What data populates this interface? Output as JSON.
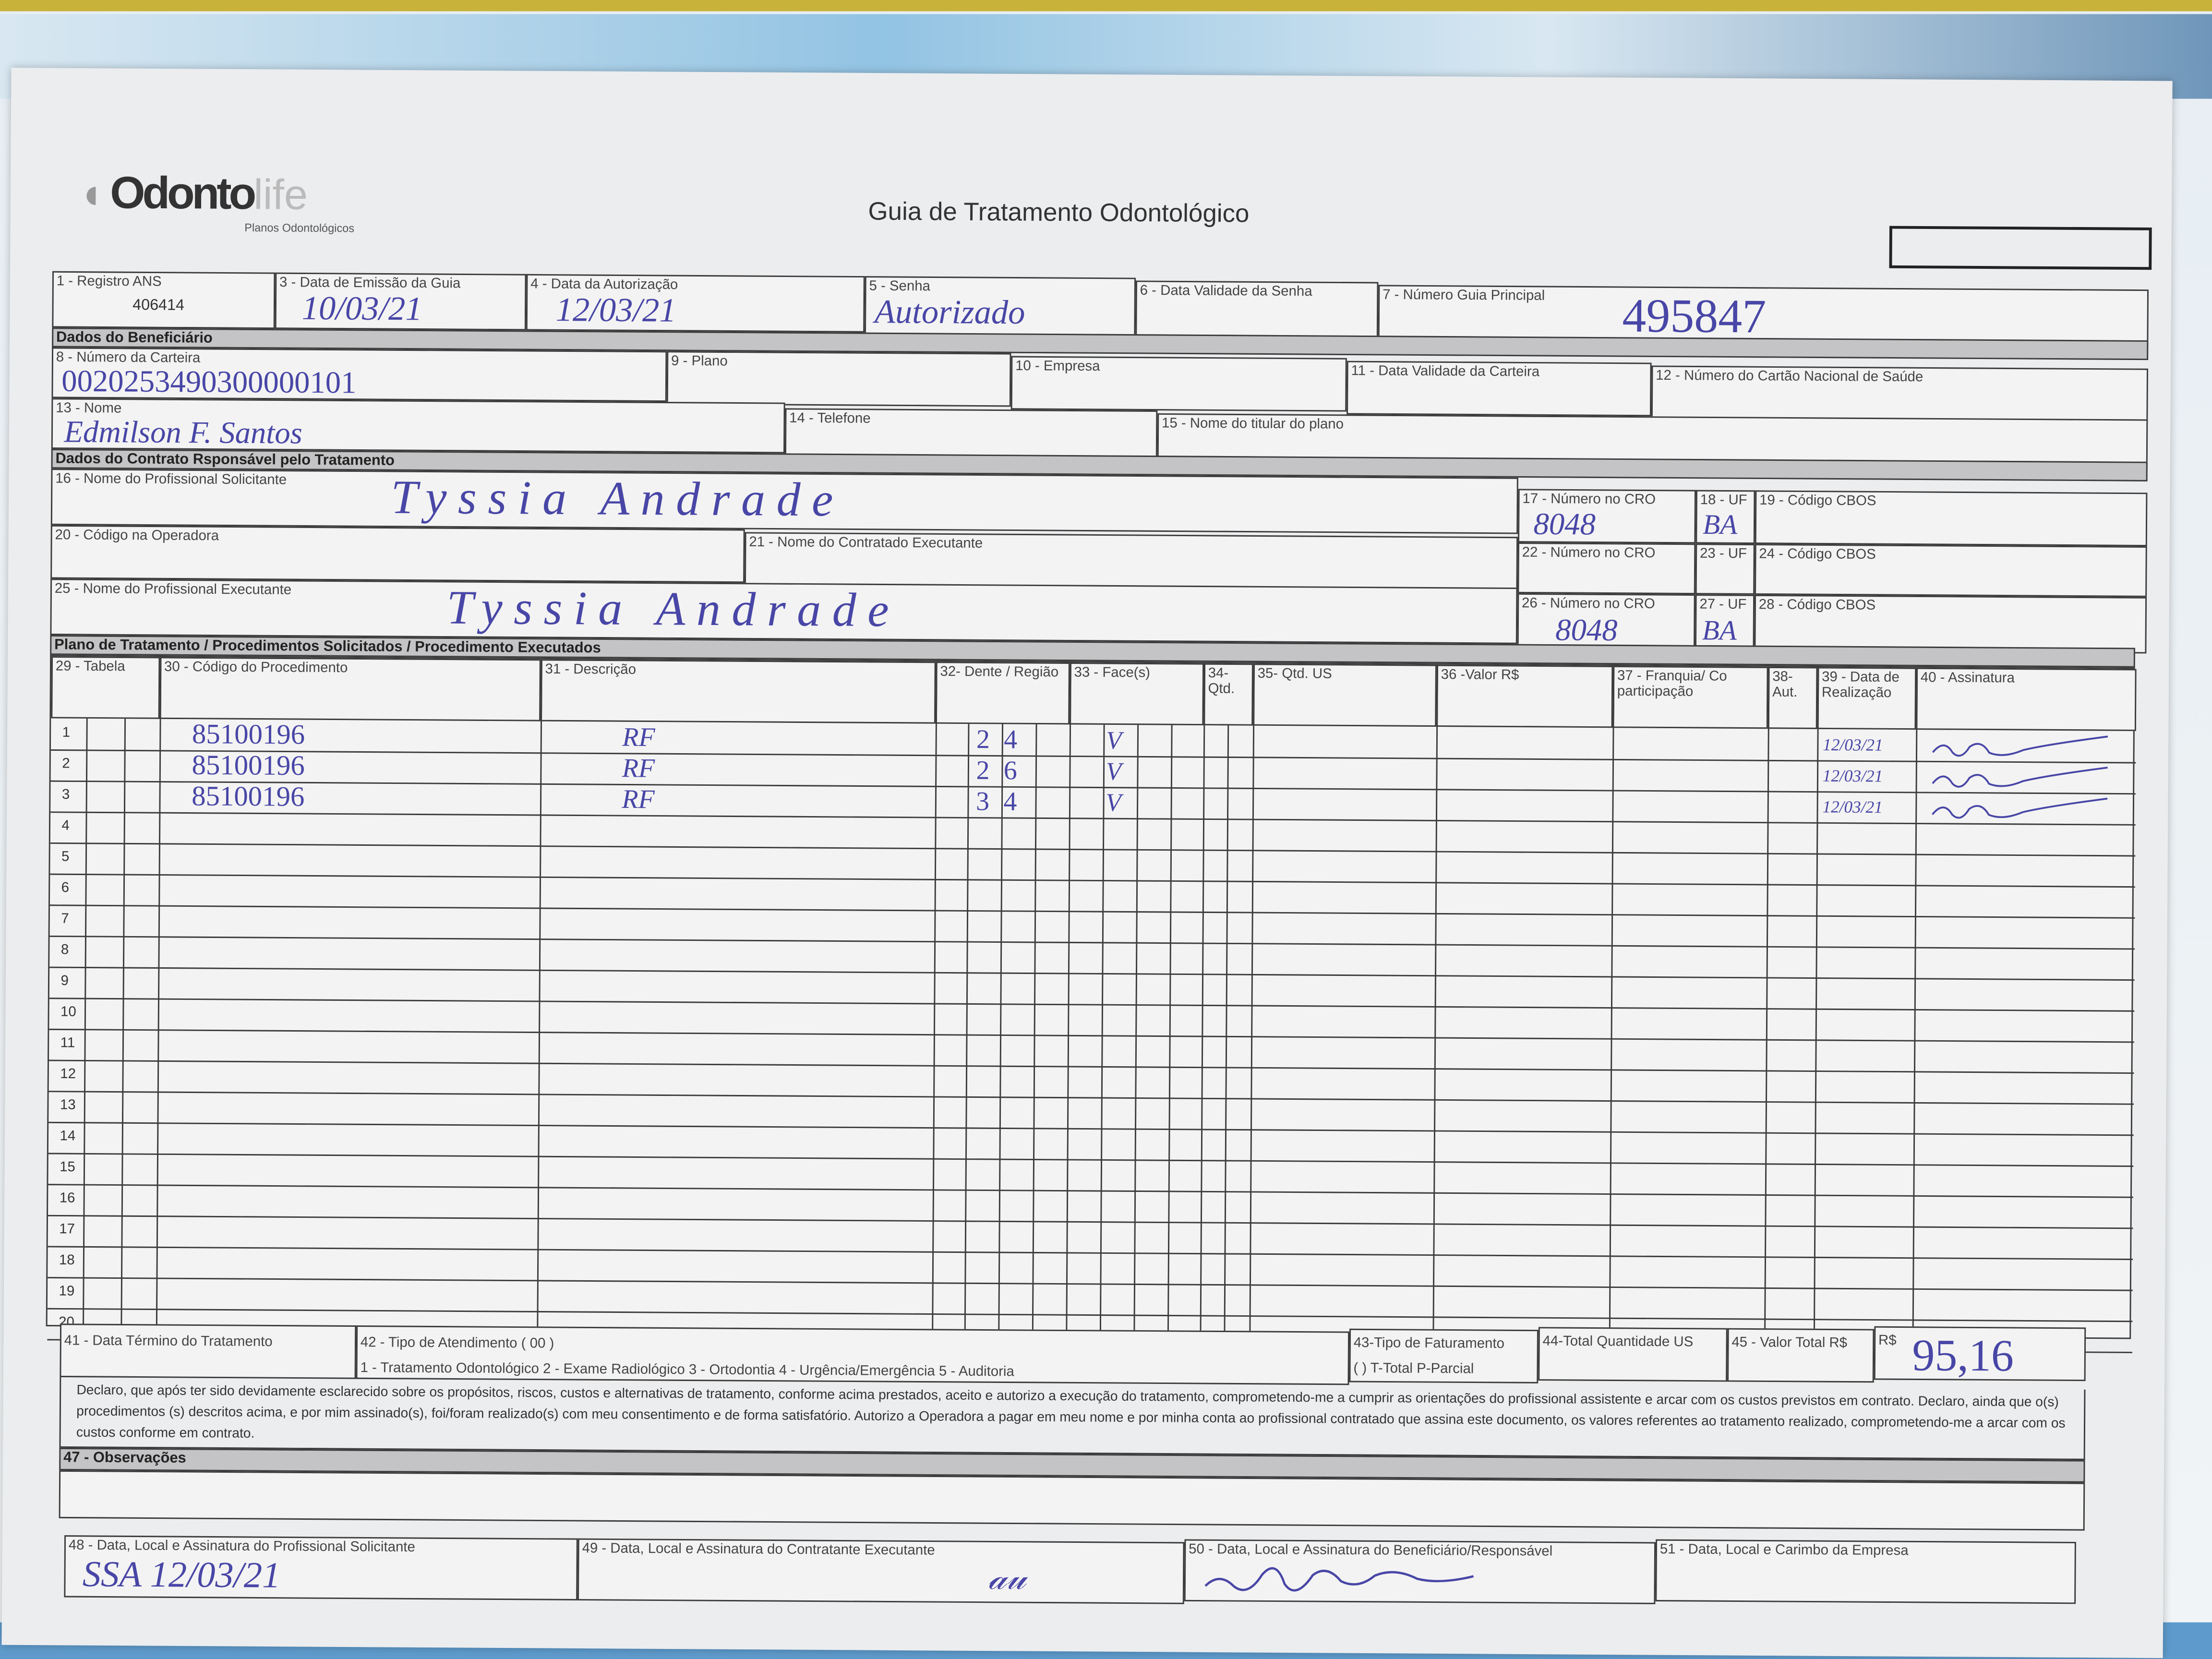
{
  "logo": {
    "brand_main": "Odonto",
    "brand_sub": "life",
    "tagline": "Planos Odontológicos"
  },
  "title": "Guia de Tratamento Odontológico",
  "header": {
    "f1": {
      "label": "1 - Registro ANS",
      "value": "406414"
    },
    "f3": {
      "label": "3 - Data de Emissão da Guia",
      "value": "10/03/21"
    },
    "f4": {
      "label": "4 - Data da Autorização",
      "value": "12/03/21"
    },
    "f5": {
      "label": "5 - Senha",
      "value": "Autorizado"
    },
    "f6": {
      "label": "6 - Data Validade da Senha"
    },
    "f7": {
      "label": "7 - Número Guia Principal",
      "value": "495847"
    }
  },
  "beneficiario": {
    "section": "Dados do Beneficiário",
    "f8": {
      "label": "8 - Número da Carteira",
      "value": "0020253490300000101"
    },
    "f9": {
      "label": "9 - Plano"
    },
    "f10": {
      "label": "10 - Empresa"
    },
    "f11": {
      "label": "11 - Data Validade da Carteira"
    },
    "f12": {
      "label": "12 - Número do Cartão Nacional de Saúde"
    },
    "f13": {
      "label": "13 - Nome",
      "value": "Edmilson F. Santos"
    },
    "f14": {
      "label": "14 - Telefone"
    },
    "f15": {
      "label": "15 - Nome do titular do plano"
    }
  },
  "contrato": {
    "section": "Dados do Contrato Rsponsável pelo Tratamento",
    "f16": {
      "label": "16 - Nome do Profissional Solicitante",
      "value": "Tyssia Andrade"
    },
    "f17": {
      "label": "17 - Número no CRO",
      "value": "8048"
    },
    "f18": {
      "label": "18 - UF",
      "value": "BA"
    },
    "f19": {
      "label": "19 - Código CBOS"
    },
    "f20": {
      "label": "20 - Código na Operadora"
    },
    "f21": {
      "label": "21 - Nome do Contratado Executante"
    },
    "f22": {
      "label": "22 - Número no CRO"
    },
    "f23": {
      "label": "23 - UF"
    },
    "f24": {
      "label": "24 - Código CBOS"
    },
    "f25": {
      "label": "25 - Nome do Profissional Executante",
      "value": "Tyssia Andrade"
    },
    "f26": {
      "label": "26 - Número no CRO",
      "value": "8048"
    },
    "f27": {
      "label": "27 - UF",
      "value": "BA"
    },
    "f28": {
      "label": "28 - Código CBOS"
    }
  },
  "plano": {
    "section": "Plano de Tratamento / Procedimentos Solicitados / Procedimento Executados",
    "columns": [
      "29 - Tabela",
      "30 - Código do Procedimento",
      "31 - Descrição",
      "32- Dente / Região",
      "33 - Face(s)",
      "34- Qtd.",
      "35- Qtd. US",
      "36 -Valor R$",
      "37 - Franquia/ Co participação",
      "38- Aut.",
      "39 - Data de Realização",
      "40 - Assinatura"
    ],
    "row_numbers": [
      "1",
      "2",
      "3",
      "4",
      "5",
      "6",
      "7",
      "8",
      "9",
      "10",
      "11",
      "12",
      "13",
      "14",
      "15",
      "16",
      "17",
      "18",
      "19",
      "20"
    ],
    "rows": [
      {
        "codigo": "85100196",
        "descricao": "RF",
        "dente": "24",
        "face": "V",
        "data": "12/03/21"
      },
      {
        "codigo": "85100196",
        "descricao": "RF",
        "dente": "26",
        "face": "V",
        "data": "12/03/21"
      },
      {
        "codigo": "85100196",
        "descricao": "RF",
        "dente": "34",
        "face": "V",
        "data": "12/03/21"
      }
    ]
  },
  "footer": {
    "f41": {
      "label": "41 - Data Término do Tratamento"
    },
    "f42": {
      "label": "42 - Tipo de Atendimento ( 00 )",
      "options": "1 - Tratamento Odontológico 2 - Exame Radiológico 3 - Ortodontia 4 - Urgência/Emergência 5 - Auditoria"
    },
    "f43": {
      "label": "43-Tipo de Faturamento",
      "options": "(    ) T-Total   P-Parcial"
    },
    "f44": {
      "label": "44-Total Quantidade US"
    },
    "f45": {
      "label": "45 - Valor Total R$",
      "currency": "R$",
      "value": "95,16"
    },
    "declaration": "Declaro, que após ter sido devidamente esclarecido sobre os propósitos, riscos, custos e alternativas de tratamento, conforme acima prestados, aceito e autorizo a execução do tratamento, comprometendo-me a cumprir as orientações do profissional assistente e arcar com os custos previstos em contrato. Declaro, ainda que o(s) procedimentos (s) descritos acima, e por mim assinado(s), foi/foram realizado(s) com meu consentimento e de forma satisfatório. Autorizo a Operadora a pagar em meu nome e por minha conta ao profissional contratado que assina este documento, os valores referentes ao tratamento realizado, comprometendo-me a arcar com os custos conforme em contrato.",
    "f47": {
      "label": "47 - Observações"
    },
    "f48": {
      "label": "48 - Data, Local e Assinatura do Profissional Solicitante",
      "value": "SSA 12/03/21"
    },
    "f49": {
      "label": "49 - Data, Local e Assinatura do Contratante Executante"
    },
    "f50": {
      "label": "50 - Data, Local e Assinatura do Beneficiário/Responsável"
    },
    "f51": {
      "label": "51 - Data, Local e Carimbo da Empresa"
    }
  },
  "colors": {
    "ink": "#4846a6",
    "paper": "#f3f3f3",
    "section_bar": "#c4c4c6"
  }
}
